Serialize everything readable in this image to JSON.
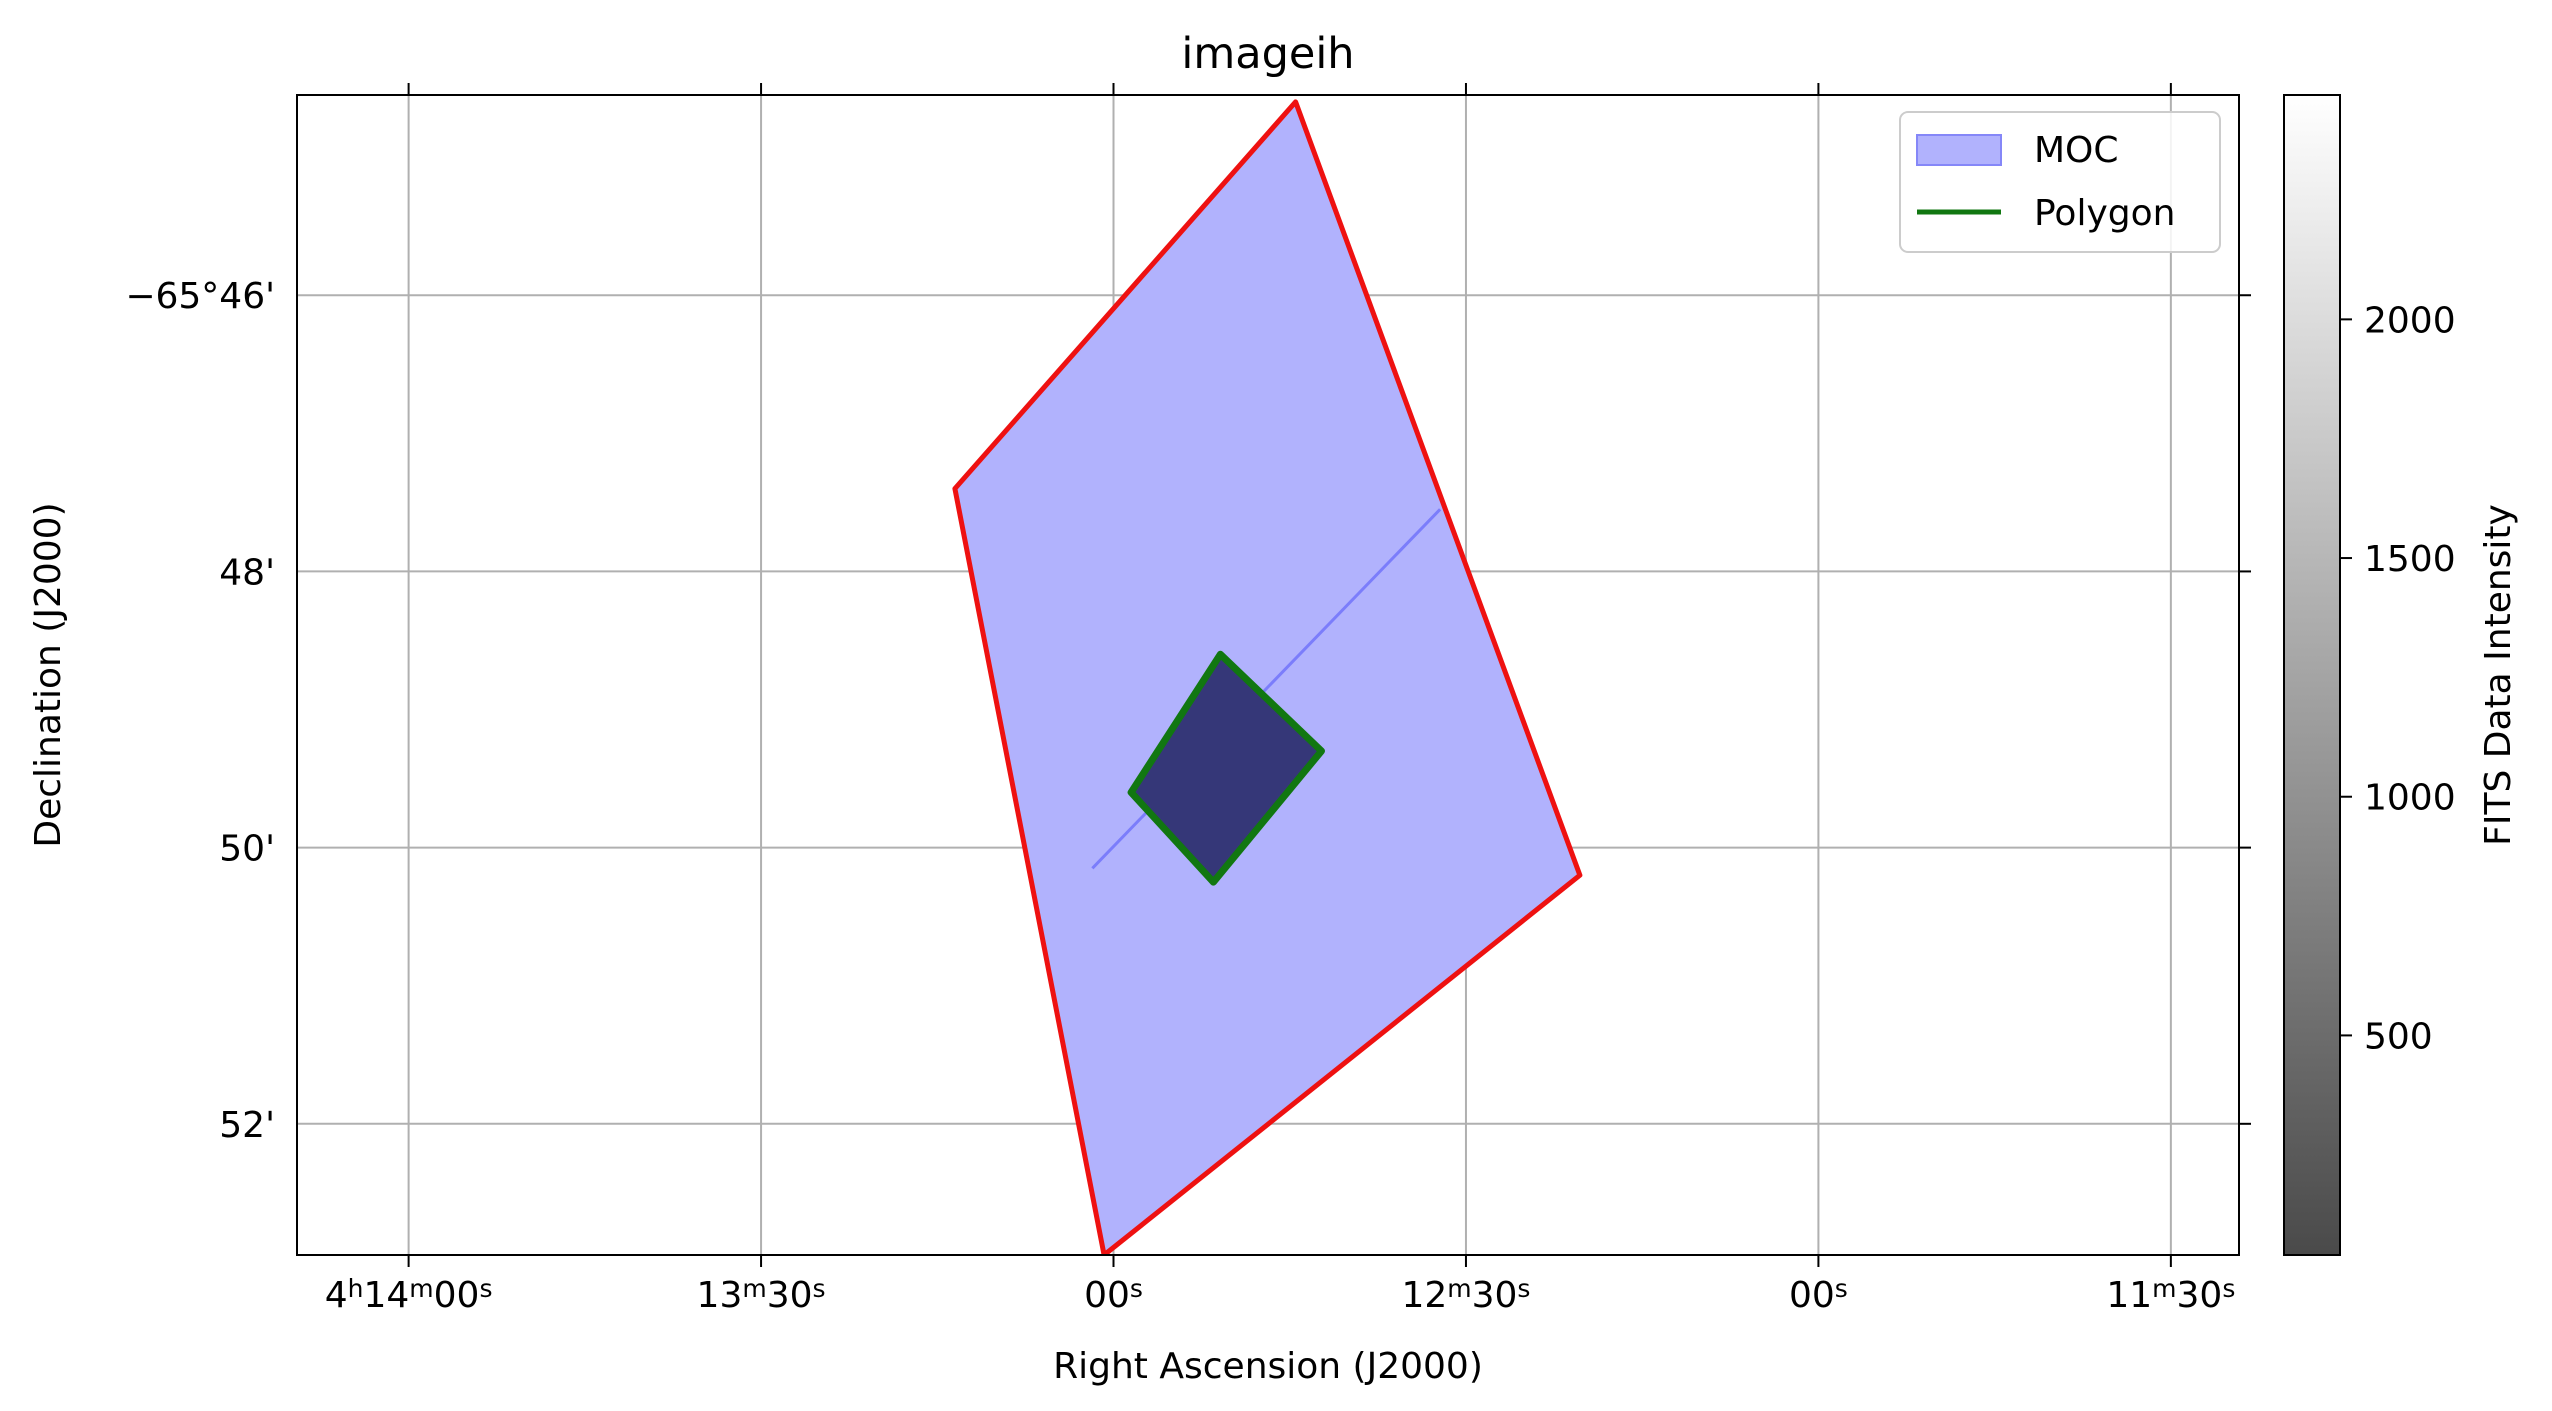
{
  "chart_data": {
    "type": "sky-coverage",
    "title": "imageih",
    "xlabel": "Right Ascension (J2000)",
    "ylabel": "Declination (J2000)",
    "grid": true,
    "legend_position": "top-right",
    "x_ticks": [
      {
        "value_s": 840,
        "main": "4",
        "u1": "h",
        "mid": "14",
        "u2": "m",
        "tail": "00",
        "u3": "s"
      },
      {
        "value_s": 810,
        "main": "",
        "u1": "",
        "mid": "13",
        "u2": "m",
        "tail": "30",
        "u3": "s"
      },
      {
        "value_s": 780,
        "main": "",
        "u1": "",
        "mid": "",
        "u2": "",
        "tail": "00",
        "u3": "s"
      },
      {
        "value_s": 750,
        "main": "",
        "u1": "",
        "mid": "12",
        "u2": "m",
        "tail": "30",
        "u3": "s"
      },
      {
        "value_s": 720,
        "main": "",
        "u1": "",
        "mid": "",
        "u2": "",
        "tail": "00",
        "u3": "s"
      },
      {
        "value_s": 690,
        "main": "",
        "u1": "",
        "mid": "11",
        "u2": "m",
        "tail": "30",
        "u3": "s"
      }
    ],
    "y_ticks": [
      {
        "value_arcmin": -46,
        "label": "−65°46'"
      },
      {
        "value_arcmin": -48,
        "label": "48'"
      },
      {
        "value_arcmin": -50,
        "label": "50'"
      },
      {
        "value_arcmin": -52,
        "label": "52'"
      }
    ],
    "x_range_s": [
      849.5,
      684.2
    ],
    "y_range_arcmin": [
      -44.55,
      -52.95
    ],
    "moc_region": {
      "name": "MOC",
      "fill_color": "#b1b2fd",
      "edge_color": "#ee1111",
      "vertices": [
        [
          764.5,
          -44.6
        ],
        [
          793.5,
          -47.4
        ],
        [
          780.8,
          -52.95
        ],
        [
          740.3,
          -50.2
        ]
      ]
    },
    "moc_inner_line": [
      [
        781.8,
        -50.15
      ],
      [
        752.2,
        -47.55
      ]
    ],
    "polygon": {
      "name": "Polygon",
      "fill_color": "#353778",
      "edge_color": "#117711",
      "vertices": [
        [
          770.9,
          -48.6
        ],
        [
          778.5,
          -49.6
        ],
        [
          771.5,
          -50.25
        ],
        [
          762.3,
          -49.3
        ]
      ]
    },
    "colorbar": {
      "label": "FITS Data Intensity",
      "ticks": [
        500,
        1000,
        1500,
        2000
      ],
      "range": [
        40,
        2470
      ],
      "colormap": "gray"
    },
    "legend": [
      {
        "label": "MOC",
        "kind": "patch"
      },
      {
        "label": "Polygon",
        "kind": "line"
      }
    ]
  }
}
